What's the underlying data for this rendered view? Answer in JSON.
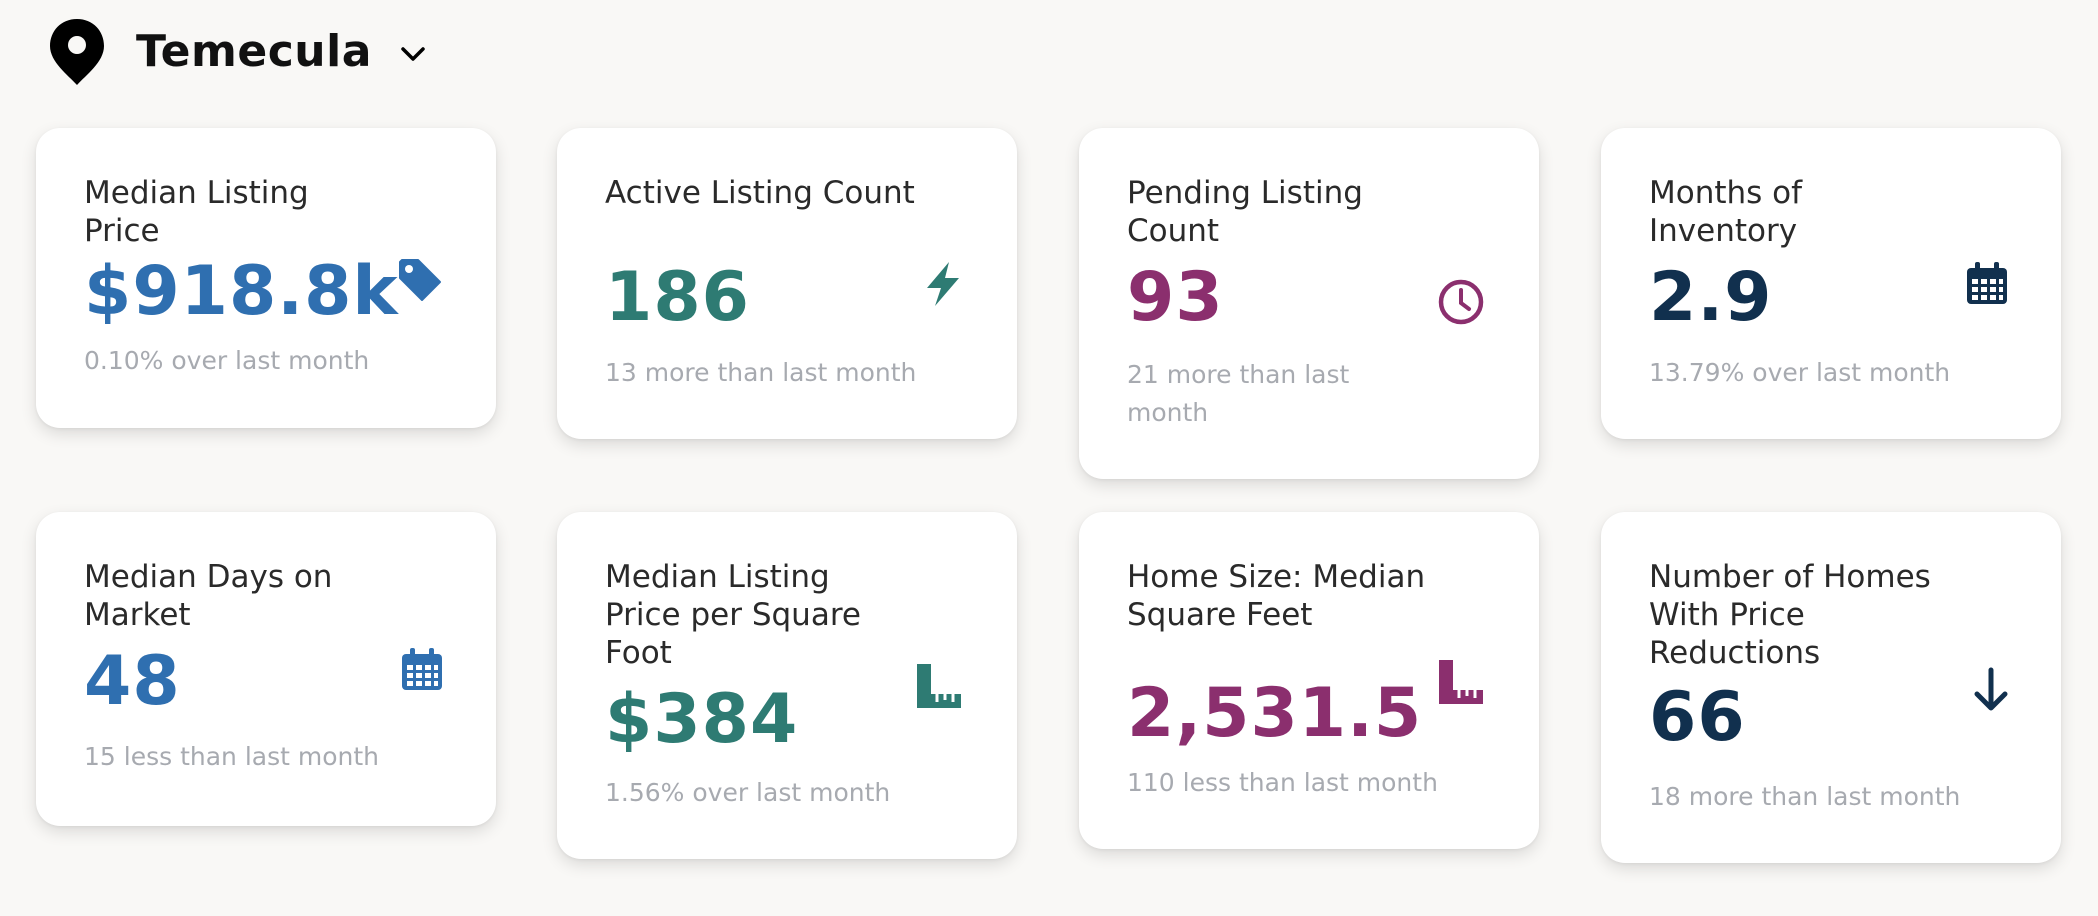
{
  "location": {
    "city": "Temecula"
  },
  "colors": {
    "blue": "#2f6fb0",
    "teal": "#2e7b73",
    "magenta": "#8b2f6e",
    "navy": "#11304e"
  },
  "cards": [
    {
      "title": "Median Listing Price",
      "value": "$918.8k",
      "change": "0.10% over last month",
      "icon": "tag-icon"
    },
    {
      "title": "Active Listing Count",
      "value": "186",
      "change": "13 more than last month",
      "icon": "lightning-bolt-icon"
    },
    {
      "title": "Pending Listing Count",
      "value": "93",
      "change": "21 more than last month",
      "icon": "clock-icon"
    },
    {
      "title": "Months of Inventory",
      "value": "2.9",
      "change": "13.79% over last month",
      "icon": "calendar-icon"
    },
    {
      "title": "Median Days on Market",
      "value": "48",
      "change": "15 less than last month",
      "icon": "calendar-icon"
    },
    {
      "title": "Median Listing Price per Square Foot",
      "value": "$384",
      "change": "1.56% over last month",
      "icon": "ruler-icon"
    },
    {
      "title": "Home Size: Median Square Feet",
      "value": "2,531.5",
      "change": "110 less than last month",
      "icon": "ruler-icon"
    },
    {
      "title": "Number of Homes With Price Reductions",
      "value": "66",
      "change": "18 more than last month",
      "icon": "arrow-down-icon"
    }
  ]
}
